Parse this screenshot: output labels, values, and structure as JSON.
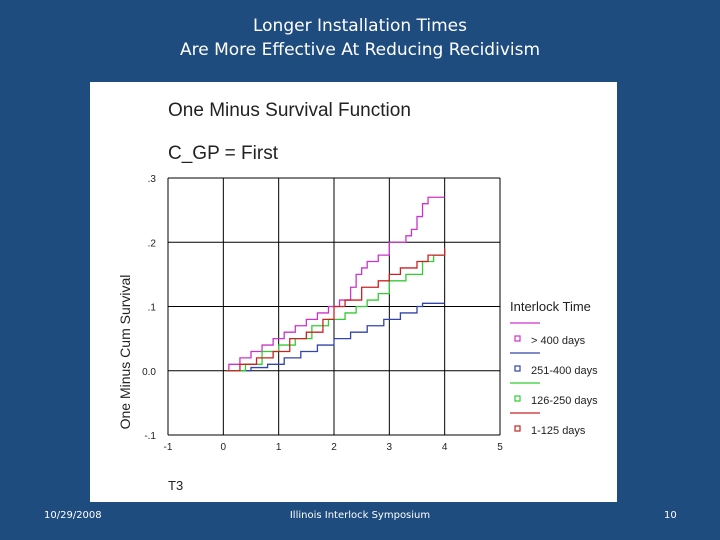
{
  "slide": {
    "title_line1": "Longer Installation Times",
    "title_line2": "Are More Effective At Reducing Recidivism",
    "footer_date": "10/29/2008",
    "footer_center": "Illinois Interlock Symposium",
    "footer_page": "10"
  },
  "chart_data": {
    "type": "line",
    "step": true,
    "title": "One Minus Survival Function",
    "subtitle": "C_GP = First",
    "xlabel": "T3",
    "ylabel": "One Minus Cum Survival",
    "xlim": [
      -1,
      5
    ],
    "ylim": [
      -0.1,
      0.3
    ],
    "xticks": [
      -1,
      0,
      1,
      2,
      3,
      4,
      5
    ],
    "x_tick_labels": [
      "-1",
      "0",
      "1",
      "2",
      "3",
      "4",
      "5"
    ],
    "yticks": [
      -0.1,
      0.0,
      0.1,
      0.2,
      0.3
    ],
    "y_tick_labels": [
      "-.1",
      "0.0",
      ".1",
      ".2",
      ".3"
    ],
    "grid": true,
    "legend_title": "Interlock Time",
    "legend_position": "right",
    "series": [
      {
        "name": "> 400 days",
        "color": "#cc33cc",
        "points": [
          [
            0.05,
            0.0
          ],
          [
            0.1,
            0.01
          ],
          [
            0.3,
            0.02
          ],
          [
            0.5,
            0.03
          ],
          [
            0.7,
            0.04
          ],
          [
            0.9,
            0.05
          ],
          [
            1.1,
            0.06
          ],
          [
            1.3,
            0.07
          ],
          [
            1.5,
            0.08
          ],
          [
            1.7,
            0.09
          ],
          [
            1.9,
            0.1
          ],
          [
            2.1,
            0.11
          ],
          [
            2.3,
            0.13
          ],
          [
            2.4,
            0.15
          ],
          [
            2.5,
            0.16
          ],
          [
            2.6,
            0.17
          ],
          [
            2.8,
            0.18
          ],
          [
            3.0,
            0.2
          ],
          [
            3.3,
            0.21
          ],
          [
            3.4,
            0.22
          ],
          [
            3.5,
            0.24
          ],
          [
            3.6,
            0.26
          ],
          [
            3.7,
            0.27
          ],
          [
            4.0,
            0.27
          ]
        ]
      },
      {
        "name": "251-400 days",
        "color": "#3344aa",
        "points": [
          [
            0.05,
            0.0
          ],
          [
            0.5,
            0.005
          ],
          [
            0.8,
            0.01
          ],
          [
            1.1,
            0.02
          ],
          [
            1.4,
            0.03
          ],
          [
            1.7,
            0.04
          ],
          [
            2.0,
            0.05
          ],
          [
            2.3,
            0.06
          ],
          [
            2.6,
            0.07
          ],
          [
            2.9,
            0.08
          ],
          [
            3.2,
            0.09
          ],
          [
            3.5,
            0.1
          ],
          [
            3.6,
            0.105
          ],
          [
            4.0,
            0.105
          ]
        ]
      },
      {
        "name": "126-250 days",
        "color": "#33cc33",
        "points": [
          [
            0.05,
            0.0
          ],
          [
            0.4,
            0.01
          ],
          [
            0.7,
            0.03
          ],
          [
            1.0,
            0.04
          ],
          [
            1.3,
            0.05
          ],
          [
            1.6,
            0.07
          ],
          [
            1.9,
            0.08
          ],
          [
            2.2,
            0.09
          ],
          [
            2.4,
            0.1
          ],
          [
            2.6,
            0.11
          ],
          [
            2.8,
            0.12
          ],
          [
            3.0,
            0.14
          ],
          [
            3.3,
            0.15
          ],
          [
            3.6,
            0.17
          ],
          [
            3.8,
            0.18
          ],
          [
            4.0,
            0.19
          ]
        ]
      },
      {
        "name": "1-125 days",
        "color": "#cc2222",
        "points": [
          [
            0.05,
            0.0
          ],
          [
            0.3,
            0.01
          ],
          [
            0.6,
            0.02
          ],
          [
            0.9,
            0.03
          ],
          [
            1.2,
            0.05
          ],
          [
            1.5,
            0.06
          ],
          [
            1.8,
            0.08
          ],
          [
            2.0,
            0.1
          ],
          [
            2.2,
            0.11
          ],
          [
            2.5,
            0.13
          ],
          [
            2.8,
            0.14
          ],
          [
            3.0,
            0.15
          ],
          [
            3.2,
            0.16
          ],
          [
            3.5,
            0.17
          ],
          [
            3.7,
            0.18
          ],
          [
            4.0,
            0.19
          ]
        ]
      }
    ]
  }
}
